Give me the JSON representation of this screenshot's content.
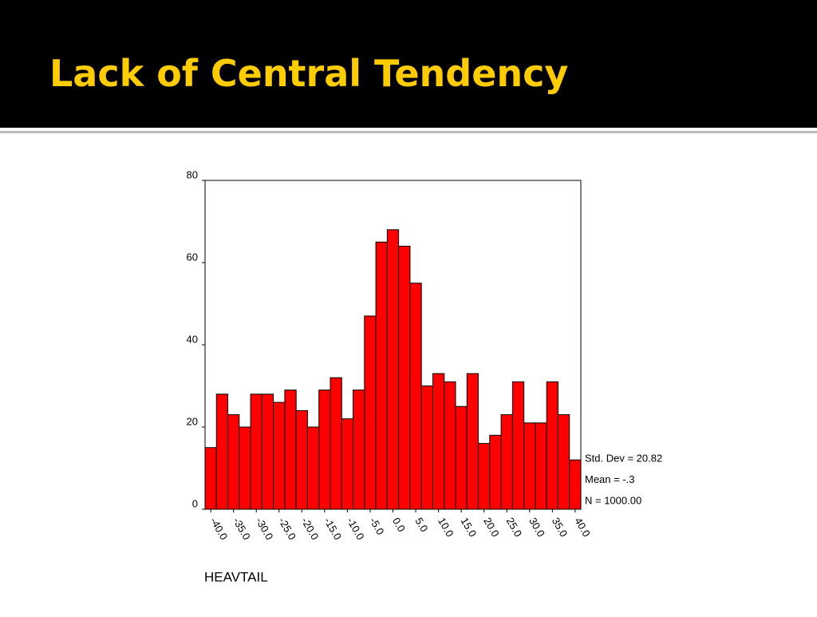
{
  "slide_title": "Lack of Central Tendency",
  "chart_data": {
    "type": "histogram",
    "x_label": "HEAVTAIL",
    "annotations": [
      "Std. Dev = 20.82",
      "Mean = -.3",
      "N = 1000.00"
    ],
    "bins": [
      -41.25,
      -38.75,
      -36.25,
      -33.75,
      -31.25,
      -28.75,
      -26.25,
      -23.75,
      -21.25,
      -18.75,
      -16.25,
      -13.75,
      -11.25,
      -8.75,
      -6.25,
      -3.75,
      -1.25,
      1.25,
      3.75,
      6.25,
      8.75,
      11.25,
      13.75,
      16.25,
      18.75,
      21.25,
      23.75,
      26.25,
      28.75,
      31.25,
      33.75,
      36.25,
      38.75,
      41.25
    ],
    "values": [
      15,
      28,
      23,
      20,
      28,
      28,
      26,
      29,
      24,
      20,
      29,
      32,
      22,
      29,
      47,
      65,
      68,
      64,
      55,
      30,
      33,
      31,
      25,
      33,
      16,
      18,
      23,
      31,
      21,
      21,
      31,
      23,
      12
    ],
    "color": "#ff0000",
    "xlim": [
      -41.25,
      41.25
    ],
    "xticks": [
      {
        "value": -40,
        "label": "-40.0"
      },
      {
        "value": -35,
        "label": "-35.0"
      },
      {
        "value": -30,
        "label": "-30.0"
      },
      {
        "value": -25,
        "label": "-25.0"
      },
      {
        "value": -20,
        "label": "-20.0"
      },
      {
        "value": -15,
        "label": "-15.0"
      },
      {
        "value": -10,
        "label": "-10.0"
      },
      {
        "value": -5,
        "label": "-5.0"
      },
      {
        "value": 0,
        "label": "0.0"
      },
      {
        "value": 5,
        "label": "5.0"
      },
      {
        "value": 10,
        "label": "10.0"
      },
      {
        "value": 15,
        "label": "15.0"
      },
      {
        "value": 20,
        "label": "20.0"
      },
      {
        "value": 25,
        "label": "25.0"
      },
      {
        "value": 30,
        "label": "30.0"
      },
      {
        "value": 35,
        "label": "35.0"
      },
      {
        "value": 40,
        "label": "40.0"
      }
    ],
    "ylim": [
      0,
      80
    ],
    "yticks": [
      0,
      20,
      40,
      60,
      80
    ]
  }
}
